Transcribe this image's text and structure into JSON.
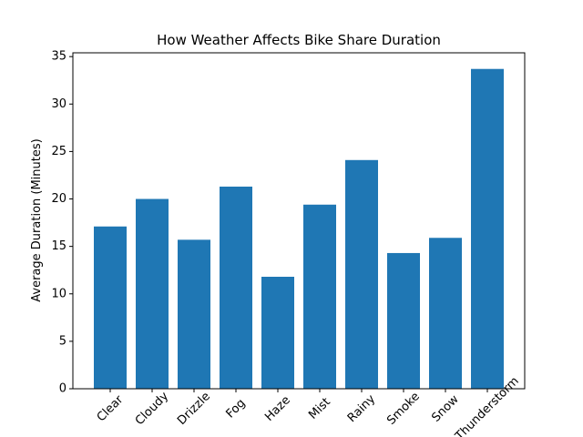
{
  "chart_data": {
    "type": "bar",
    "title": "How Weather Affects Bike Share Duration",
    "y_label": "Average Duration (Minutes)",
    "categories": [
      "Clear",
      "Cloudy",
      "Drizzle",
      "Fog",
      "Haze",
      "Mist",
      "Rainy",
      "Smoke",
      "Snow",
      "Thunderstorm"
    ],
    "values": [
      17.1,
      20.0,
      15.7,
      21.3,
      11.8,
      19.4,
      24.1,
      14.3,
      15.9,
      33.7
    ],
    "color": "#1f77b4",
    "ylim": [
      0,
      35.4
    ],
    "yticks": [
      0,
      5,
      10,
      15,
      20,
      25,
      30,
      35
    ],
    "grid": false
  }
}
